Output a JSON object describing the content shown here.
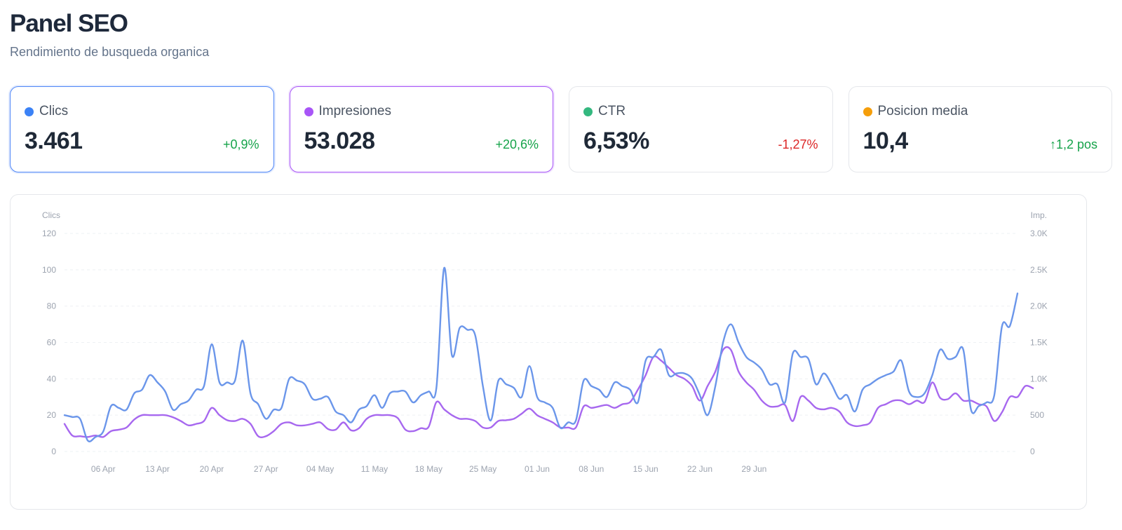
{
  "header": {
    "title": "Panel SEO",
    "subtitle": "Rendimiento de busqueda organica"
  },
  "cards": [
    {
      "label": "Clics",
      "value": "3.461",
      "delta": "+0,9%",
      "dot_color": "#3b82f6",
      "delta_color": "#16a34a"
    },
    {
      "label": "Impresiones",
      "value": "53.028",
      "delta": "+20,6%",
      "dot_color": "#a855f7",
      "delta_color": "#16a34a"
    },
    {
      "label": "CTR",
      "value": "6,53%",
      "delta": "-1,27%",
      "dot_color": "#34b87f",
      "delta_color": "#dc2626"
    },
    {
      "label": "Posicion media",
      "value": "10,4",
      "delta": "↑1,2 pos",
      "dot_color": "#f59e0b",
      "delta_color": "#16a34a"
    }
  ],
  "chart_data": {
    "type": "line",
    "y_left_label": "Clics",
    "y_right_label": "Imp.",
    "y_left_ticks": [
      "0",
      "20",
      "40",
      "60",
      "80",
      "100",
      "120"
    ],
    "y_right_ticks": [
      "0",
      "500",
      "1.0K",
      "1.5K",
      "2.0K",
      "2.5K",
      "3.0K"
    ],
    "y_left_range": [
      0,
      120
    ],
    "y_right_range": [
      0,
      3000
    ],
    "x_tick_labels": [
      "06 Apr",
      "13 Apr",
      "20 Apr",
      "27 Apr",
      "04 May",
      "11 May",
      "18 May",
      "25 May",
      "01 Jun",
      "08 Jun",
      "15 Jun",
      "22 Jun",
      "29 Jun"
    ],
    "x_tick_days": [
      5,
      12,
      19,
      26,
      33,
      40,
      47,
      54,
      61,
      68,
      75,
      82,
      89
    ],
    "grid": true,
    "series": [
      {
        "name": "Clics",
        "axis": "left",
        "color": "#6b96ea",
        "values": [
          20,
          19,
          18,
          6,
          8,
          11,
          25,
          24,
          23,
          32,
          34,
          42,
          38,
          33,
          23,
          26,
          28,
          34,
          36,
          59,
          38,
          38,
          39,
          61,
          32,
          26,
          18,
          23,
          24,
          40,
          39,
          37,
          29,
          29,
          30,
          22,
          20,
          16,
          23,
          25,
          31,
          24,
          32,
          33,
          33,
          27,
          31,
          33,
          35,
          101,
          53,
          68,
          67,
          64,
          36,
          17,
          39,
          37,
          35,
          30,
          47,
          30,
          27,
          24,
          13,
          16,
          17,
          39,
          36,
          34,
          30,
          38,
          36,
          34,
          27,
          50,
          52,
          56,
          42,
          43,
          43,
          40,
          31,
          20,
          36,
          60,
          70,
          60,
          52,
          49,
          45,
          37,
          37,
          27,
          54,
          52,
          51,
          37,
          43,
          37,
          29,
          31,
          22,
          34,
          37,
          40,
          42,
          44,
          50,
          33,
          30,
          32,
          42,
          56,
          51,
          52,
          56,
          23,
          25,
          27,
          31,
          69,
          69,
          87
        ]
      },
      {
        "name": "Impresiones",
        "axis": "right",
        "color": "#a768ef",
        "values": [
          380,
          220,
          210,
          200,
          220,
          200,
          280,
          300,
          330,
          440,
          500,
          500,
          500,
          500,
          470,
          420,
          360,
          380,
          420,
          600,
          500,
          430,
          420,
          450,
          380,
          210,
          210,
          280,
          380,
          400,
          360,
          360,
          380,
          400,
          310,
          300,
          400,
          290,
          320,
          450,
          500,
          500,
          500,
          460,
          300,
          280,
          320,
          340,
          680,
          580,
          500,
          450,
          450,
          420,
          330,
          330,
          420,
          430,
          450,
          520,
          590,
          500,
          450,
          400,
          330,
          330,
          330,
          620,
          600,
          620,
          640,
          600,
          650,
          680,
          850,
          1050,
          1300,
          1250,
          1150,
          1050,
          1000,
          900,
          700,
          900,
          1100,
          1400,
          1400,
          1100,
          950,
          850,
          700,
          620,
          620,
          640,
          420,
          750,
          700,
          600,
          580,
          600,
          550,
          400,
          350,
          360,
          400,
          600,
          650,
          700,
          700,
          650,
          700,
          680,
          950,
          740,
          720,
          800,
          700,
          700,
          650,
          620,
          420,
          540,
          750,
          750,
          900,
          870
        ]
      }
    ]
  }
}
